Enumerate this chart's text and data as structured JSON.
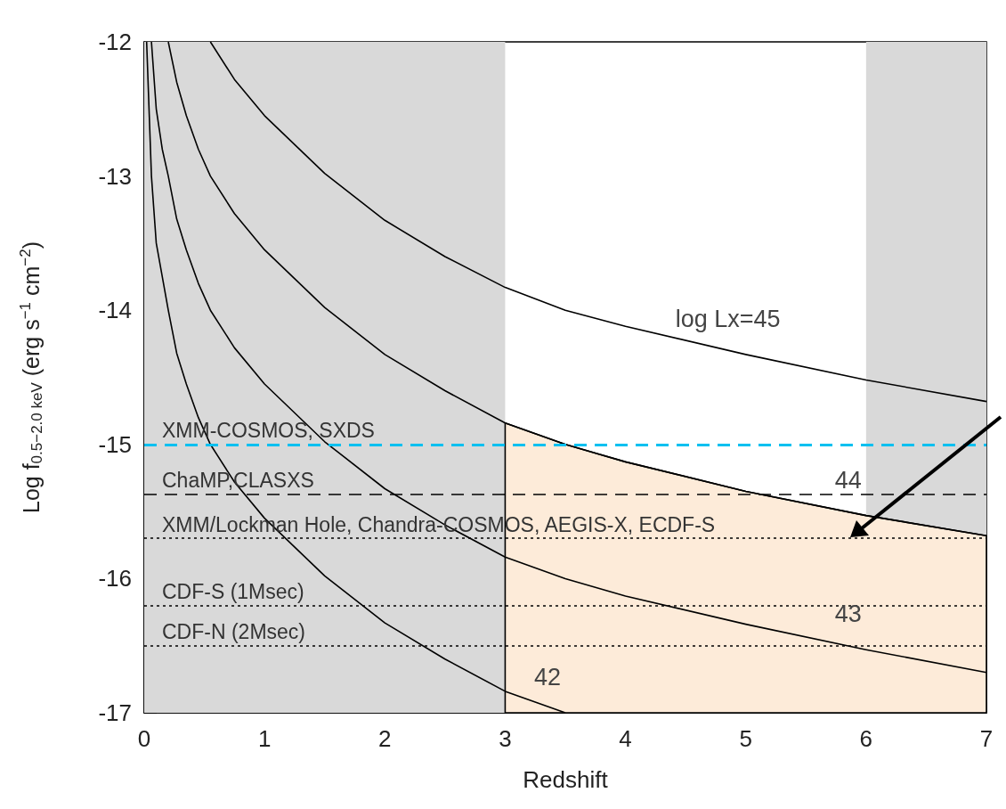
{
  "chart_data": {
    "type": "line",
    "xlabel": "Redshift",
    "ylabel": "Log f$_{0.5−2.0 keV}$ (erg s$^{−1}$ cm$^{−2}$)",
    "xlim": [
      0,
      7
    ],
    "ylim": [
      -17,
      -12
    ],
    "xticks": [
      0,
      1,
      2,
      3,
      4,
      5,
      6,
      7
    ],
    "yticks": [
      -17,
      -16,
      -15,
      -14,
      -13,
      -12
    ],
    "grid": false,
    "marker": "none",
    "bands": [
      {
        "axis": "x",
        "from": 0,
        "to": 3,
        "color": "#d9d9d9"
      },
      {
        "axis": "x",
        "from": 6,
        "to": 7,
        "color": "#d9d9d9"
      }
    ],
    "series": [
      {
        "type": "area",
        "color": "#fdebd9",
        "x": [
          3,
          3,
          3.5,
          4,
          5,
          6,
          7,
          7
        ],
        "values": [
          -17,
          -14.84,
          -15.0,
          -15.13,
          -15.35,
          -15.53,
          -15.68,
          -17
        ]
      },
      {
        "color": "#000000",
        "x": [
          0.55,
          0.75,
          1,
          1.5,
          2,
          2.5,
          3,
          3.5,
          4,
          5,
          6,
          7
        ],
        "values": [
          -12.0,
          -12.28,
          -12.55,
          -12.98,
          -13.33,
          -13.6,
          -13.83,
          -14.0,
          -14.12,
          -14.33,
          -14.52,
          -14.68
        ]
      },
      {
        "color": "#000000",
        "x": [
          0.2,
          0.27,
          0.35,
          0.45,
          0.55,
          0.75,
          1,
          1.5,
          2,
          2.5,
          3,
          3.5,
          4,
          5,
          6,
          7
        ],
        "values": [
          -12.0,
          -12.3,
          -12.55,
          -12.8,
          -13.0,
          -13.28,
          -13.55,
          -13.98,
          -14.33,
          -14.6,
          -14.84,
          -15.0,
          -15.13,
          -15.35,
          -15.53,
          -15.68
        ]
      },
      {
        "color": "#000000",
        "x": [
          0.06,
          0.1,
          0.15,
          0.2,
          0.27,
          0.35,
          0.45,
          0.55,
          0.75,
          1,
          1.5,
          2,
          2.5,
          3,
          3.5,
          4,
          5,
          6,
          7
        ],
        "values": [
          -12.0,
          -12.5,
          -12.8,
          -13.0,
          -13.32,
          -13.55,
          -13.8,
          -14.0,
          -14.28,
          -14.55,
          -14.98,
          -15.33,
          -15.6,
          -15.84,
          -16.0,
          -16.13,
          -16.34,
          -16.53,
          -16.7
        ]
      },
      {
        "color": "#000000",
        "x": [
          0.02,
          0.06,
          0.1,
          0.2,
          0.27,
          0.35,
          0.45,
          0.55,
          0.75,
          1,
          1.5,
          2,
          2.5,
          3,
          3.5
        ],
        "values": [
          -12.0,
          -13.0,
          -13.5,
          -14.0,
          -14.32,
          -14.55,
          -14.8,
          -15.0,
          -15.28,
          -15.55,
          -15.98,
          -16.33,
          -16.6,
          -16.84,
          -17.0
        ]
      }
    ],
    "ref_lines": [
      {
        "axis": "y",
        "value": -15.0,
        "label": "XMM-COSMOS, SXDS",
        "color": "#00c0f0",
        "line_style": "dashed"
      },
      {
        "axis": "y",
        "value": -15.37,
        "label": "ChaMP,CLASXS",
        "color": "#000000",
        "line_style": "dashed"
      },
      {
        "axis": "y",
        "value": -15.7,
        "label": "XMM/Lockman Hole, Chandra-COSMOS, AEGIS-X, ECDF-S",
        "color": "#000000",
        "line_style": "dotted"
      },
      {
        "axis": "y",
        "value": -16.2,
        "label": "CDF-S (1Msec)",
        "color": "#000000",
        "line_style": "dotted"
      },
      {
        "axis": "y",
        "value": -16.5,
        "label": "CDF-N (2Msec)",
        "color": "#000000",
        "line_style": "dotted"
      }
    ],
    "annotations": [
      {
        "text": "log Lx=45",
        "x": 5,
        "y": -14.33
      },
      {
        "text": "44",
        "x": 6,
        "y": -15.53
      },
      {
        "text": "43",
        "x": 6,
        "y": -16.53
      },
      {
        "text": "42",
        "x": 3.5,
        "y": -17.0
      }
    ]
  }
}
